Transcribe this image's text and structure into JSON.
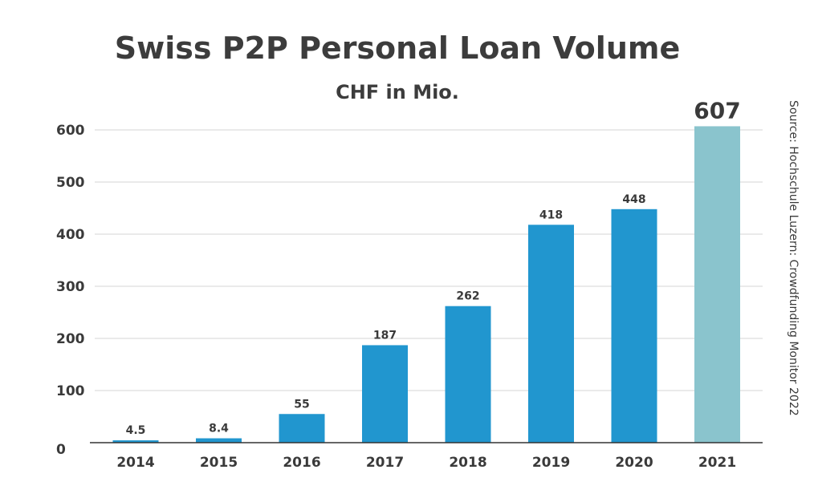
{
  "title": "Swiss P2P Personal Loan Volume",
  "subtitle": "CHF in Mio.",
  "source": "Source: Hochschule Luzern: Crowdfunding Monitor 2022",
  "colors": {
    "bar": "#2196cf",
    "highlight": "#8ac4cd",
    "grid": "#d4d4d4",
    "axis": "#333333",
    "text": "#3a3a3a"
  },
  "chart_data": {
    "type": "bar",
    "title": "Swiss P2P Personal Loan Volume",
    "subtitle": "CHF in Mio.",
    "categories": [
      "2014",
      "2015",
      "2016",
      "2017",
      "2018",
      "2019",
      "2020",
      "2021"
    ],
    "values": [
      4.5,
      8.4,
      55,
      187,
      262,
      418,
      448,
      607
    ],
    "data_labels": [
      "4.5",
      "8.4",
      "55",
      "187",
      "262",
      "418",
      "448",
      "607"
    ],
    "highlight_category": "2021",
    "yticks": [
      0,
      100,
      200,
      300,
      400,
      500,
      600
    ],
    "ylim": [
      0,
      620
    ],
    "grid": true,
    "xlabel": "",
    "ylabel": ""
  }
}
